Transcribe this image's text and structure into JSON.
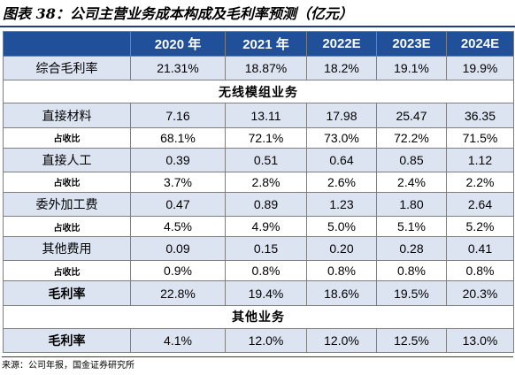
{
  "caption": "图表 38：公司主营业务成本构成及毛利率预测（亿元）",
  "columns": [
    "",
    "2020 年",
    "2021 年",
    "2022E",
    "2023E",
    "2024E"
  ],
  "rows": [
    {
      "label": "综合毛利率",
      "type": "main",
      "values": [
        "21.31%",
        "18.87%",
        "18.2%",
        "19.1%",
        "19.9%"
      ]
    },
    {
      "label": "无线模组业务",
      "type": "section"
    },
    {
      "label": "直接材料",
      "type": "main",
      "values": [
        "7.16",
        "13.11",
        "17.98",
        "25.47",
        "36.35"
      ]
    },
    {
      "label": "占收比",
      "type": "sub",
      "values": [
        "68.1%",
        "72.1%",
        "73.0%",
        "72.2%",
        "71.5%"
      ]
    },
    {
      "label": "直接人工",
      "type": "main",
      "values": [
        "0.39",
        "0.51",
        "0.64",
        "0.85",
        "1.12"
      ]
    },
    {
      "label": "占收比",
      "type": "sub",
      "values": [
        "3.7%",
        "2.8%",
        "2.6%",
        "2.4%",
        "2.2%"
      ]
    },
    {
      "label": "委外加工费",
      "type": "main",
      "values": [
        "0.47",
        "0.89",
        "1.23",
        "1.80",
        "2.64"
      ]
    },
    {
      "label": "占收比",
      "type": "sub",
      "values": [
        "4.5%",
        "4.9%",
        "5.0%",
        "5.1%",
        "5.2%"
      ]
    },
    {
      "label": "其他费用",
      "type": "main",
      "values": [
        "0.09",
        "0.15",
        "0.20",
        "0.28",
        "0.41"
      ]
    },
    {
      "label": "占收比",
      "type": "sub",
      "values": [
        "0.9%",
        "0.8%",
        "0.8%",
        "0.8%",
        "0.8%"
      ]
    },
    {
      "label": "毛利率",
      "type": "main-bold",
      "values": [
        "22.8%",
        "19.4%",
        "18.6%",
        "19.5%",
        "20.3%"
      ]
    },
    {
      "label": "其他业务",
      "type": "section"
    },
    {
      "label": "毛利率",
      "type": "main-bold",
      "values": [
        "4.1%",
        "12.0%",
        "12.0%",
        "12.5%",
        "13.0%"
      ]
    }
  ],
  "source": "来源：公司年报，国金证券研究所",
  "colors": {
    "header_bg": "#1f5099",
    "shade_bg": "#dce4f2"
  }
}
